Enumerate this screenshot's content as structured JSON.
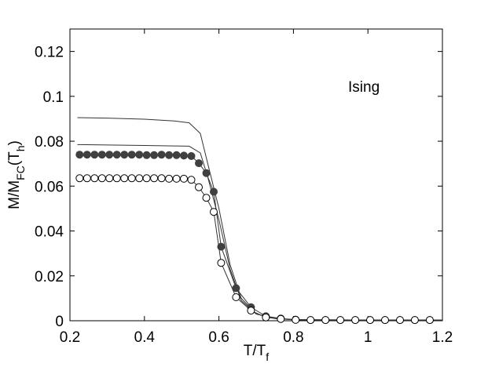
{
  "chart_data": {
    "type": "line",
    "title": "",
    "xlabel": {
      "main": "T/T",
      "sub": "f"
    },
    "ylabel": {
      "p1": "M/M",
      "sub1": "FC",
      "p2": "(T",
      "sub2": "h",
      "p3": ")"
    },
    "annotation": "Ising",
    "xlim": [
      0.2,
      1.2
    ],
    "ylim": [
      0,
      0.13
    ],
    "x_ticks": [
      0.2,
      0.4,
      0.6,
      0.8,
      1,
      1.2
    ],
    "x_tick_labels": [
      "0.2",
      "0.4",
      "0.6",
      "0.8",
      "1",
      "1.2"
    ],
    "y_ticks": [
      0,
      0.02,
      0.04,
      0.06,
      0.08,
      0.1,
      0.12
    ],
    "y_tick_labels": [
      "0",
      "0.02",
      "0.04",
      "0.06",
      "0.08",
      "0.1",
      "0.12"
    ],
    "grid": false,
    "series": [
      {
        "marker": "none",
        "x": [
          0.22,
          0.3,
          0.4,
          0.48,
          0.52,
          0.55,
          0.57,
          0.6,
          0.63,
          0.66,
          0.7,
          0.75,
          0.8,
          1.0,
          1.2
        ],
        "y": [
          0.0905,
          0.0903,
          0.0898,
          0.089,
          0.0882,
          0.0835,
          0.07,
          0.05,
          0.025,
          0.01,
          0.003,
          0.001,
          0.0005,
          0.0003,
          0.0003
        ]
      },
      {
        "marker": "none",
        "x": [
          0.22,
          0.3,
          0.4,
          0.48,
          0.52,
          0.55,
          0.57,
          0.6,
          0.63,
          0.66,
          0.7,
          0.75,
          0.8,
          1.0,
          1.2
        ],
        "y": [
          0.0785,
          0.0783,
          0.0781,
          0.0779,
          0.0778,
          0.0748,
          0.064,
          0.045,
          0.023,
          0.009,
          0.003,
          0.001,
          0.0005,
          0.0003,
          0.0003
        ]
      },
      {
        "marker": "filled-circle",
        "color": "#404040",
        "x": [
          0.226,
          0.246,
          0.266,
          0.286,
          0.306,
          0.326,
          0.346,
          0.366,
          0.386,
          0.406,
          0.426,
          0.446,
          0.466,
          0.486,
          0.506,
          0.526,
          0.546,
          0.566,
          0.586,
          0.606,
          0.646,
          0.686,
          0.726,
          0.766,
          0.806,
          0.846,
          0.886,
          0.926,
          0.966,
          1.006,
          1.046,
          1.086,
          1.126,
          1.166
        ],
        "y": [
          0.074,
          0.074,
          0.074,
          0.074,
          0.074,
          0.074,
          0.074,
          0.074,
          0.074,
          0.0738,
          0.0738,
          0.074,
          0.0738,
          0.0738,
          0.0736,
          0.0734,
          0.0702,
          0.0658,
          0.0575,
          0.033,
          0.0145,
          0.006,
          0.002,
          0.001,
          0.0005,
          0.0003,
          0.0003,
          0.0003,
          0.0003,
          0.0003,
          0.0003,
          0.0003,
          0.0003,
          0.0003
        ]
      },
      {
        "marker": "open-circle",
        "color": "#000000",
        "x": [
          0.226,
          0.246,
          0.266,
          0.286,
          0.306,
          0.326,
          0.346,
          0.366,
          0.386,
          0.406,
          0.426,
          0.446,
          0.466,
          0.486,
          0.506,
          0.526,
          0.546,
          0.566,
          0.586,
          0.606,
          0.646,
          0.686,
          0.726,
          0.766,
          0.806,
          0.846,
          0.886,
          0.926,
          0.966,
          1.006,
          1.046,
          1.086,
          1.126,
          1.166
        ],
        "y": [
          0.0635,
          0.0635,
          0.0635,
          0.0635,
          0.0635,
          0.0635,
          0.0635,
          0.0635,
          0.0635,
          0.0635,
          0.0635,
          0.0635,
          0.0633,
          0.0633,
          0.0633,
          0.0628,
          0.0595,
          0.0548,
          0.0485,
          0.0258,
          0.0105,
          0.0045,
          0.0015,
          0.0008,
          0.0004,
          0.0003,
          0.0003,
          0.0003,
          0.0003,
          0.0003,
          0.0003,
          0.0003,
          0.0003,
          0.0003
        ]
      }
    ]
  }
}
